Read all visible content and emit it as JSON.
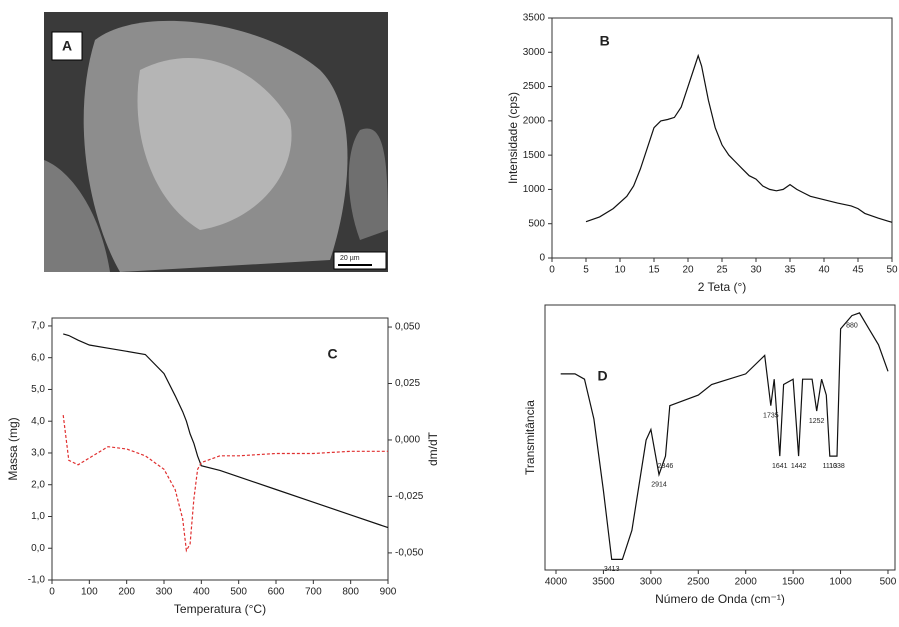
{
  "image_panel": {
    "label": "A",
    "scale_bar": "20 µm"
  },
  "chart_data": [
    {
      "type": "line",
      "panel_label": "B",
      "xlabel": "2 Teta (°)",
      "ylabel": "Intensidade (cps)",
      "xlim": [
        0,
        50
      ],
      "xticks": [
        0,
        5,
        10,
        15,
        20,
        25,
        30,
        35,
        40,
        45,
        50
      ],
      "ylim": [
        0,
        3500
      ],
      "yticks": [
        0,
        500,
        1000,
        1500,
        2000,
        2500,
        3000,
        3500
      ],
      "x": [
        5,
        7,
        9,
        11,
        12,
        13,
        14,
        15,
        16,
        17,
        18,
        19,
        20,
        21,
        21.5,
        22,
        23,
        24,
        25,
        26,
        27,
        28,
        29,
        30,
        31,
        32,
        33,
        34,
        35,
        36,
        37,
        38,
        40,
        42,
        44,
        45,
        46,
        48,
        50
      ],
      "series": [
        {
          "color": "#111111",
          "values": [
            530,
            600,
            720,
            900,
            1050,
            1300,
            1600,
            1900,
            2000,
            2020,
            2050,
            2200,
            2500,
            2800,
            2950,
            2800,
            2300,
            1900,
            1650,
            1500,
            1400,
            1300,
            1200,
            1150,
            1050,
            1000,
            980,
            1000,
            1070,
            1000,
            950,
            900,
            850,
            800,
            760,
            720,
            650,
            580,
            520
          ]
        }
      ]
    },
    {
      "type": "line",
      "panel_label": "C",
      "xlabel": "Temperatura (°C)",
      "ylabel": "Massa (mg)",
      "y2label": "dm/dT",
      "xlim": [
        0,
        900
      ],
      "xticks": [
        0,
        100,
        200,
        300,
        400,
        500,
        600,
        700,
        800,
        900
      ],
      "ylim": [
        -1.0,
        7.25
      ],
      "yticks": [
        {
          "value": -1.0,
          "label": "-1,0"
        },
        {
          "value": 0.0,
          "label": "0,0"
        },
        {
          "value": 1.0,
          "label": "1,0"
        },
        {
          "value": 2.0,
          "label": "2,0"
        },
        {
          "value": 3.0,
          "label": "3,0"
        },
        {
          "value": 4.0,
          "label": "4,0"
        },
        {
          "value": 5.0,
          "label": "5,0"
        },
        {
          "value": 6.0,
          "label": "6,0"
        },
        {
          "value": 7.0,
          "label": "7,0"
        }
      ],
      "y2lim": [
        -0.062,
        0.054
      ],
      "y2ticks": [
        {
          "value": -0.05,
          "label": "-0,050"
        },
        {
          "value": -0.025,
          "label": "-0,025"
        },
        {
          "value": 0,
          "label": "0,000"
        },
        {
          "value": 0.025,
          "label": "0,025"
        },
        {
          "value": 0.05,
          "label": "0,050"
        }
      ],
      "x": [
        30,
        45,
        70,
        100,
        150,
        200,
        250,
        300,
        330,
        350,
        360,
        370,
        380,
        390,
        400,
        450,
        500,
        600,
        700,
        800,
        900
      ],
      "series": [
        {
          "color": "#111111",
          "values": [
            6.75,
            6.7,
            6.55,
            6.4,
            6.3,
            6.2,
            6.1,
            5.5,
            4.8,
            4.3,
            4.0,
            3.6,
            3.3,
            2.9,
            2.6,
            2.45,
            2.25,
            1.85,
            1.45,
            1.05,
            0.65
          ]
        },
        {
          "color": "#e03030",
          "dashed": true,
          "axis": "y2",
          "values": [
            0.011,
            -0.009,
            -0.011,
            -0.008,
            -0.003,
            -0.004,
            -0.007,
            -0.013,
            -0.022,
            -0.035,
            -0.049,
            -0.046,
            -0.026,
            -0.013,
            -0.01,
            -0.007,
            -0.007,
            -0.006,
            -0.006,
            -0.005,
            -0.005
          ]
        }
      ]
    },
    {
      "type": "line",
      "panel_label": "D",
      "xlabel": "Número de Onda (cm⁻¹)",
      "ylabel": "Transmitância",
      "xlim": [
        4116,
        426
      ],
      "xticks": [
        4000,
        3500,
        3000,
        2500,
        2000,
        1500,
        1000,
        500
      ],
      "ylim": [
        0,
        100
      ],
      "x": [
        3950,
        3800,
        3700,
        3600,
        3500,
        3413,
        3300,
        3200,
        3050,
        3000,
        2914,
        2846,
        2800,
        2500,
        2360,
        2000,
        1800,
        1735,
        1700,
        1641,
        1600,
        1500,
        1442,
        1400,
        1300,
        1252,
        1200,
        1150,
        1113,
        1038,
        1000,
        880,
        800,
        700,
        600,
        500
      ],
      "series": [
        {
          "color": "#111111",
          "values": [
            74,
            74,
            72,
            57,
            30,
            4,
            4,
            15,
            49,
            53,
            36,
            43,
            62,
            66,
            70,
            74,
            81,
            62,
            72,
            43,
            70,
            72,
            43,
            72,
            72,
            60,
            72,
            66,
            43,
            43,
            91,
            96,
            97,
            91,
            85,
            75
          ]
        }
      ],
      "annotations": [
        {
          "label": "3413",
          "x": 3413,
          "y": 4
        },
        {
          "label": "2914",
          "x": 2914,
          "y": 36
        },
        {
          "label": "2846",
          "x": 2846,
          "y": 43
        },
        {
          "label": "1735",
          "x": 1735,
          "y": 62
        },
        {
          "label": "1641",
          "x": 1641,
          "y": 43
        },
        {
          "label": "1442",
          "x": 1442,
          "y": 43
        },
        {
          "label": "1252",
          "x": 1252,
          "y": 60
        },
        {
          "label": "1113",
          "x": 1113,
          "y": 43
        },
        {
          "label": "1038",
          "x": 1038,
          "y": 43
        },
        {
          "label": "880",
          "x": 880,
          "y": 96
        }
      ]
    }
  ]
}
